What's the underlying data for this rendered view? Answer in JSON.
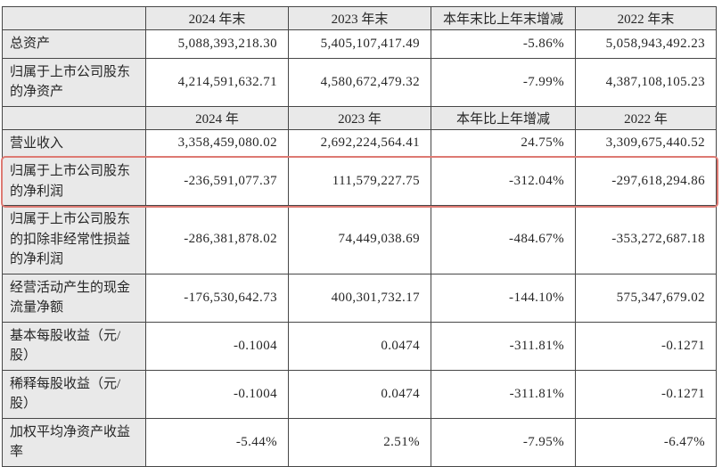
{
  "table": {
    "colors": {
      "header_bg": "#e9e9e9",
      "label_bg": "#e9e9e9",
      "grid_border": "#474747",
      "highlight_border": "#dd7a73",
      "text": "#262626"
    },
    "sections": [
      {
        "headers": [
          "",
          "2024 年末",
          "2023 年末",
          "本年末比上年末增减",
          "2022 年末"
        ],
        "rows": [
          {
            "label": "总资产",
            "values": [
              "5,088,393,218.30",
              "5,405,107,417.49",
              "-5.86%",
              "5,058,943,492.23"
            ],
            "highlight": false
          },
          {
            "label": "归属于上市公司股东的净资产",
            "values": [
              "4,214,591,632.71",
              "4,580,672,479.32",
              "-7.99%",
              "4,387,108,105.23"
            ],
            "highlight": false
          }
        ]
      },
      {
        "headers": [
          "",
          "2024 年",
          "2023 年",
          "本年比上年增减",
          "2022 年"
        ],
        "rows": [
          {
            "label": "营业收入",
            "values": [
              "3,358,459,080.02",
              "2,692,224,564.41",
              "24.75%",
              "3,309,675,440.52"
            ],
            "highlight": false
          },
          {
            "label": "归属于上市公司股东的净利润",
            "values": [
              "-236,591,077.37",
              "111,579,227.75",
              "-312.04%",
              "-297,618,294.86"
            ],
            "highlight": true
          },
          {
            "label": "归属于上市公司股东的扣除非经常性损益的净利润",
            "values": [
              "-286,381,878.02",
              "74,449,038.69",
              "-484.67%",
              "-353,272,687.18"
            ],
            "highlight": false
          },
          {
            "label": "经营活动产生的现金流量净额",
            "values": [
              "-176,530,642.73",
              "400,301,732.17",
              "-144.10%",
              "575,347,679.02"
            ],
            "highlight": false
          },
          {
            "label": "基本每股收益（元/股）",
            "values": [
              "-0.1004",
              "0.0474",
              "-311.81%",
              "-0.1271"
            ],
            "highlight": false
          },
          {
            "label": "稀释每股收益（元/股）",
            "values": [
              "-0.1004",
              "0.0474",
              "-311.81%",
              "-0.1271"
            ],
            "highlight": false
          },
          {
            "label": "加权平均净资产收益率",
            "values": [
              "-5.44%",
              "2.51%",
              "-7.95%",
              "-6.47%"
            ],
            "highlight": false
          }
        ]
      }
    ]
  }
}
